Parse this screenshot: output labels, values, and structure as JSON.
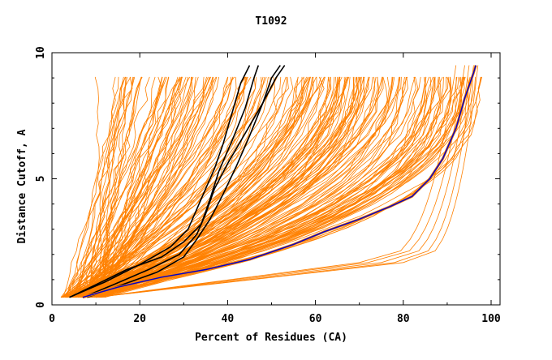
{
  "chart_data": {
    "type": "line",
    "title": "T1092",
    "xlabel": "Percent of Residues (CA)",
    "ylabel": "Distance Cutoff, A",
    "xlim": [
      0,
      100
    ],
    "ylim": [
      0,
      10
    ],
    "x_ticks": [
      "0",
      "20",
      "40",
      "60",
      "80",
      "100"
    ],
    "y_ticks": [
      "0",
      "5",
      "10"
    ],
    "grid": false,
    "legend": "none",
    "colors": {
      "background_models": "#ff8000",
      "highlight": "#000000",
      "best": "#0000cc",
      "axes": "#000000"
    },
    "highlight_series": [
      {
        "points": [
          [
            4,
            0.3
          ],
          [
            10,
            0.8
          ],
          [
            17,
            1.4
          ],
          [
            25,
            1.9
          ],
          [
            30,
            2.5
          ],
          [
            34,
            3.2
          ],
          [
            36,
            4.2
          ],
          [
            38,
            5.3
          ],
          [
            41,
            6.5
          ],
          [
            44,
            7.8
          ],
          [
            46,
            9.0
          ],
          [
            47,
            9.5
          ]
        ]
      },
      {
        "points": [
          [
            4,
            0.3
          ],
          [
            12,
            0.9
          ],
          [
            20,
            1.6
          ],
          [
            27,
            2.3
          ],
          [
            31,
            3.0
          ],
          [
            33,
            3.8
          ],
          [
            35,
            4.6
          ],
          [
            37,
            5.4
          ],
          [
            39,
            6.4
          ],
          [
            41,
            7.6
          ],
          [
            43,
            8.8
          ],
          [
            45,
            9.5
          ]
        ]
      },
      {
        "points": [
          [
            7,
            0.3
          ],
          [
            14,
            0.8
          ],
          [
            22,
            1.4
          ],
          [
            29,
            2.0
          ],
          [
            33,
            2.8
          ],
          [
            35,
            3.6
          ],
          [
            37,
            4.6
          ],
          [
            40,
            5.6
          ],
          [
            44,
            6.8
          ],
          [
            48,
            8.0
          ],
          [
            51,
            9.0
          ],
          [
            53,
            9.5
          ]
        ]
      },
      {
        "points": [
          [
            8,
            0.3
          ],
          [
            16,
            0.8
          ],
          [
            24,
            1.3
          ],
          [
            30,
            1.9
          ],
          [
            33,
            2.6
          ],
          [
            36,
            3.4
          ],
          [
            39,
            4.4
          ],
          [
            42,
            5.5
          ],
          [
            45,
            6.7
          ],
          [
            48,
            8.0
          ],
          [
            50,
            9.0
          ],
          [
            52,
            9.5
          ]
        ]
      }
    ],
    "best_series": {
      "points": [
        [
          7,
          0.3
        ],
        [
          15,
          0.7
        ],
        [
          25,
          1.1
        ],
        [
          35,
          1.4
        ],
        [
          45,
          1.8
        ],
        [
          55,
          2.4
        ],
        [
          62,
          2.9
        ],
        [
          70,
          3.4
        ],
        [
          77,
          3.9
        ],
        [
          82,
          4.3
        ],
        [
          86,
          5.0
        ],
        [
          89,
          5.8
        ],
        [
          92,
          7.0
        ],
        [
          94,
          8.2
        ],
        [
          96,
          9.2
        ],
        [
          96.5,
          9.5
        ]
      ]
    },
    "background_series": []
  }
}
